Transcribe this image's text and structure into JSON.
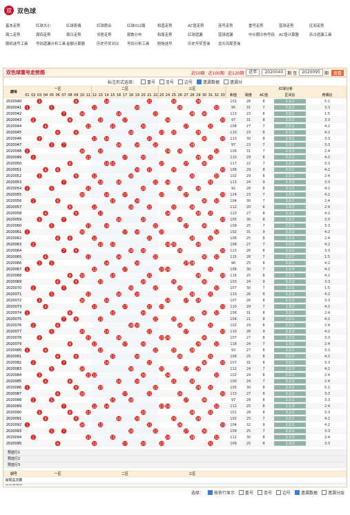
{
  "header": {
    "logo": "双",
    "title": "双色球"
  },
  "nav": [
    "基本走势",
    "红球大小",
    "红球奇偶",
    "红球质合",
    "红球012路",
    "和值走势",
    "AC值走势",
    "连号走势",
    "重号走势",
    "蓝球走势",
    "区间走势",
    "周二走势",
    "周四走势",
    "周日走势",
    "邻居走势",
    "尾数分布",
    "和尾走势",
    "红球遗漏",
    "蓝球遗漏",
    "中长期冷热号码",
    "AC值计算器",
    "杀冷遗漏工具",
    "随机选号工具",
    "号码遗漏分析工具",
    "金额计算器",
    "历史开奖对比",
    "号码分析工具",
    "胆拖选号",
    "历史开奖查询",
    "龙头凤尾查询"
  ],
  "panel": {
    "title": "双色球重号走势图",
    "ranges": [
      "近50期",
      "近100期",
      "近120期"
    ],
    "select": "近年",
    "from": "2020040",
    "to": "2020095",
    "period": "期",
    "to_word": "至",
    "button": "查看",
    "mark_label": "标注形式选择：",
    "marks": [
      {
        "label": "重号",
        "checked": false
      },
      {
        "label": "连号",
        "checked": false
      },
      {
        "label": "边号",
        "checked": false
      },
      {
        "label": "遗漏数据",
        "checked": true
      },
      {
        "label": "遗漏分",
        "checked": false
      }
    ]
  },
  "table": {
    "head": {
      "issue": "期号",
      "zones": [
        "一区",
        "二区",
        "三区"
      ],
      "analysis": "红球分析",
      "numbers": [
        "01",
        "02",
        "03",
        "04",
        "05",
        "06",
        "07",
        "08",
        "09",
        "10",
        "11",
        "12",
        "13",
        "14",
        "15",
        "16",
        "17",
        "18",
        "19",
        "20",
        "21",
        "22",
        "23",
        "24",
        "25",
        "26",
        "27",
        "28",
        "29",
        "30",
        "31",
        "32",
        "33"
      ],
      "cols": [
        "和值",
        "跨度",
        "AC值",
        "区间比",
        "奇偶比"
      ]
    },
    "rows": [
      {
        "issue": "2020040",
        "reds": [
          3,
          9,
          14,
          21,
          25,
          29
        ],
        "sum": 101,
        "span": 26,
        "ac": 8,
        "zone": "2:2:2",
        "oe": "5:1"
      },
      {
        "issue": "2020041",
        "reds": [
          1,
          5,
          12,
          19,
          26,
          32
        ],
        "sum": 95,
        "span": 31,
        "ac": 7,
        "zone": "2:2:2",
        "oe": "3:3"
      },
      {
        "issue": "2020042",
        "reds": [
          7,
          10,
          16,
          22,
          28,
          30
        ],
        "sum": 113,
        "span": 23,
        "ac": 6,
        "zone": "2:2:2",
        "oe": "1:5"
      },
      {
        "issue": "2020043",
        "reds": [
          2,
          8,
          13,
          17,
          24,
          33
        ],
        "sum": 97,
        "span": 31,
        "ac": 8,
        "zone": "2:2:2",
        "oe": "3:3"
      },
      {
        "issue": "2020044",
        "reds": [
          4,
          11,
          15,
          20,
          27,
          31
        ],
        "sum": 108,
        "span": 27,
        "ac": 7,
        "zone": "2:2:2",
        "oe": "4:2"
      },
      {
        "issue": "2020045",
        "reds": [
          6,
          9,
          18,
          23,
          25,
          29
        ],
        "sum": 110,
        "span": 23,
        "ac": 6,
        "zone": "2:1:3",
        "oe": "4:2"
      },
      {
        "issue": "2020046",
        "reds": [
          3,
          12,
          14,
          21,
          30,
          33
        ],
        "sum": 113,
        "span": 30,
        "ac": 8,
        "zone": "1:3:2",
        "oe": "3:3"
      },
      {
        "issue": "2020047",
        "reds": [
          5,
          7,
          16,
          19,
          22,
          28
        ],
        "sum": 97,
        "span": 23,
        "ac": 7,
        "zone": "2:3:1",
        "oe": "3:3"
      },
      {
        "issue": "2020048",
        "reds": [
          1,
          10,
          13,
          24,
          26,
          32
        ],
        "sum": 106,
        "span": 31,
        "ac": 7,
        "zone": "2:1:3",
        "oe": "2:4"
      },
      {
        "issue": "2020049",
        "reds": [
          2,
          11,
          17,
          20,
          29,
          31
        ],
        "sum": 110,
        "span": 29,
        "ac": 8,
        "zone": "2:2:2",
        "oe": "4:2"
      },
      {
        "issue": "2020050",
        "reds": [
          8,
          14,
          15,
          23,
          27,
          30
        ],
        "sum": 117,
        "span": 22,
        "ac": 7,
        "zone": "1:2:3",
        "oe": "3:3"
      },
      {
        "issue": "2020051",
        "reds": [
          4,
          6,
          19,
          21,
          25,
          33
        ],
        "sum": 108,
        "span": 29,
        "ac": 8,
        "zone": "2:2:2",
        "oe": "4:2"
      },
      {
        "issue": "2020052",
        "reds": [
          3,
          9,
          12,
          18,
          28,
          32
        ],
        "sum": 102,
        "span": 29,
        "ac": 8,
        "zone": "2:2:2",
        "oe": "2:4"
      },
      {
        "issue": "2020053",
        "reds": [
          7,
          13,
          16,
          22,
          24,
          31
        ],
        "sum": 113,
        "span": 24,
        "ac": 9,
        "zone": "1:3:2",
        "oe": "3:3"
      },
      {
        "issue": "2020054",
        "reds": [
          1,
          5,
          11,
          20,
          26,
          29
        ],
        "sum": 92,
        "span": 28,
        "ac": 8,
        "zone": "3:1:2",
        "oe": "4:2"
      },
      {
        "issue": "2020055",
        "reds": [
          10,
          14,
          17,
          23,
          27,
          33
        ],
        "sum": 124,
        "span": 23,
        "ac": 7,
        "zone": "1:2:3",
        "oe": "4:2"
      },
      {
        "issue": "2020056",
        "reds": [
          2,
          6,
          15,
          19,
          30,
          32
        ],
        "sum": 104,
        "span": 30,
        "ac": 7,
        "zone": "2:2:2",
        "oe": "2:4"
      },
      {
        "issue": "2020057",
        "reds": [
          8,
          12,
          18,
          21,
          25,
          28
        ],
        "sum": 112,
        "span": 20,
        "ac": 6,
        "zone": "1:3:2",
        "oe": "2:4"
      },
      {
        "issue": "2020058",
        "reds": [
          4,
          9,
          13,
          24,
          29,
          31
        ],
        "sum": 110,
        "span": 27,
        "ac": 8,
        "zone": "2:1:3",
        "oe": "4:2"
      },
      {
        "issue": "2020059",
        "reds": [
          3,
          7,
          16,
          20,
          26,
          33
        ],
        "sum": 105,
        "span": 30,
        "ac": 8,
        "zone": "2:2:2",
        "oe": "3:3"
      },
      {
        "issue": "2020060",
        "reds": [
          5,
          11,
          14,
          22,
          27,
          30
        ],
        "sum": 109,
        "span": 25,
        "ac": 7,
        "zone": "2:2:2",
        "oe": "3:3"
      },
      {
        "issue": "2020061",
        "reds": [
          1,
          10,
          17,
          19,
          23,
          32
        ],
        "sum": 102,
        "span": 31,
        "ac": 9,
        "zone": "2:2:2",
        "oe": "4:2"
      },
      {
        "issue": "2020062",
        "reds": [
          6,
          8,
          12,
          21,
          28,
          31
        ],
        "sum": 106,
        "span": 25,
        "ac": 8,
        "zone": "2:2:2",
        "oe": "2:4"
      },
      {
        "issue": "2020063",
        "reds": [
          2,
          13,
          15,
          24,
          25,
          29
        ],
        "sum": 108,
        "span": 27,
        "ac": 7,
        "zone": "1:2:3",
        "oe": "4:2"
      },
      {
        "issue": "2020064",
        "reds": [
          7,
          9,
          18,
          20,
          26,
          33
        ],
        "sum": 113,
        "span": 26,
        "ac": 8,
        "zone": "2:2:2",
        "oe": "3:3"
      },
      {
        "issue": "2020065",
        "reds": [
          4,
          11,
          16,
          22,
          30,
          32
        ],
        "sum": 115,
        "span": 28,
        "ac": 7,
        "zone": "2:2:2",
        "oe": "1:5"
      },
      {
        "issue": "2020066",
        "reds": [
          3,
          5,
          14,
          19,
          27,
          28
        ],
        "sum": 96,
        "span": 25,
        "ac": 8,
        "zone": "2:2:2",
        "oe": "4:2"
      },
      {
        "issue": "2020067",
        "reds": [
          1,
          12,
          17,
          23,
          24,
          31
        ],
        "sum": 108,
        "span": 30,
        "ac": 7,
        "zone": "1:2:3",
        "oe": "4:2"
      },
      {
        "issue": "2020068",
        "reds": [
          8,
          10,
          15,
          21,
          29,
          33
        ],
        "sum": 116,
        "span": 25,
        "ac": 8,
        "zone": "2:2:2",
        "oe": "4:2"
      },
      {
        "issue": "2020069",
        "reds": [
          6,
          9,
          13,
          20,
          25,
          30
        ],
        "sum": 103,
        "span": 24,
        "ac": 9,
        "zone": "2:2:2",
        "oe": "3:3"
      },
      {
        "issue": "2020070",
        "reds": [
          2,
          7,
          18,
          22,
          26,
          32
        ],
        "sum": 107,
        "span": 30,
        "ac": 7,
        "zone": "2:2:2",
        "oe": "1:5"
      },
      {
        "issue": "2020071",
        "reds": [
          5,
          11,
          16,
          19,
          28,
          31
        ],
        "sum": 110,
        "span": 26,
        "ac": 8,
        "zone": "2:2:2",
        "oe": "4:2"
      },
      {
        "issue": "2020072",
        "reds": [
          3,
          10,
          14,
          24,
          27,
          29
        ],
        "sum": 107,
        "span": 26,
        "ac": 8,
        "zone": "2:1:3",
        "oe": "3:3"
      },
      {
        "issue": "2020073",
        "reds": [
          4,
          12,
          17,
          21,
          23,
          33
        ],
        "sum": 110,
        "span": 29,
        "ac": 7,
        "zone": "1:3:2",
        "oe": "4:2"
      },
      {
        "issue": "2020074",
        "reds": [
          1,
          8,
          15,
          20,
          30,
          32
        ],
        "sum": 106,
        "span": 31,
        "ac": 8,
        "zone": "2:2:2",
        "oe": "2:4"
      },
      {
        "issue": "2020075",
        "reds": [
          7,
          9,
          13,
          22,
          25,
          28
        ],
        "sum": 104,
        "span": 21,
        "ac": 8,
        "zone": "2:2:2",
        "oe": "4:2"
      },
      {
        "issue": "2020076",
        "reds": [
          2,
          6,
          18,
          19,
          26,
          31
        ],
        "sum": 102,
        "span": 29,
        "ac": 8,
        "zone": "2:2:2",
        "oe": "2:4"
      },
      {
        "issue": "2020077",
        "reds": [
          5,
          10,
          14,
          21,
          27,
          33
        ],
        "sum": 110,
        "span": 28,
        "ac": 9,
        "zone": "2:2:2",
        "oe": "4:2"
      },
      {
        "issue": "2020078",
        "reds": [
          3,
          11,
          16,
          23,
          24,
          30
        ],
        "sum": 107,
        "span": 27,
        "ac": 8,
        "zone": "2:1:3",
        "oe": "3:3"
      },
      {
        "issue": "2020079",
        "reds": [
          8,
          12,
          17,
          20,
          29,
          32
        ],
        "sum": 118,
        "span": 24,
        "ac": 7,
        "zone": "1:3:2",
        "oe": "2:4"
      },
      {
        "issue": "2020080",
        "reds": [
          1,
          4,
          13,
          22,
          25,
          28
        ],
        "sum": 93,
        "span": 27,
        "ac": 8,
        "zone": "2:2:2",
        "oe": "3:3"
      },
      {
        "issue": "2020081",
        "reds": [
          6,
          9,
          15,
          19,
          26,
          31
        ],
        "sum": 106,
        "span": 25,
        "ac": 8,
        "zone": "2:2:2",
        "oe": "4:2"
      },
      {
        "issue": "2020082",
        "reds": [
          2,
          7,
          14,
          21,
          30,
          33
        ],
        "sum": 107,
        "span": 31,
        "ac": 8,
        "zone": "2:2:2",
        "oe": "3:3"
      },
      {
        "issue": "2020083",
        "reds": [
          5,
          10,
          18,
          23,
          27,
          29
        ],
        "sum": 112,
        "span": 24,
        "ac": 7,
        "zone": "2:1:3",
        "oe": "4:2"
      },
      {
        "issue": "2020084",
        "reds": [
          3,
          11,
          12,
          20,
          24,
          32
        ],
        "sum": 102,
        "span": 29,
        "ac": 8,
        "zone": "2:2:2",
        "oe": "2:4"
      },
      {
        "issue": "2020085",
        "reds": [
          4,
          8,
          16,
          19,
          25,
          28
        ],
        "sum": 100,
        "span": 24,
        "ac": 7,
        "zone": "2:2:2",
        "oe": "2:4"
      },
      {
        "issue": "2020086",
        "reds": [
          1,
          9,
          13,
          22,
          29,
          31
        ],
        "sum": 105,
        "span": 30,
        "ac": 8,
        "zone": "2:2:2",
        "oe": "5:1"
      },
      {
        "issue": "2020087",
        "reds": [
          6,
          10,
          17,
          21,
          26,
          33
        ],
        "sum": 113,
        "span": 27,
        "ac": 8,
        "zone": "2:2:2",
        "oe": "3:3"
      },
      {
        "issue": "2020088",
        "reds": [
          2,
          5,
          15,
          18,
          27,
          30
        ],
        "sum": 97,
        "span": 28,
        "ac": 8,
        "zone": "2:2:2",
        "oe": "3:3"
      },
      {
        "issue": "2020089",
        "reds": [
          7,
          12,
          14,
          23,
          24,
          32
        ],
        "sum": 112,
        "span": 25,
        "ac": 8,
        "zone": "1:2:3",
        "oe": "2:4"
      },
      {
        "issue": "2020090",
        "reds": [
          3,
          8,
          11,
          20,
          28,
          31
        ],
        "sum": 101,
        "span": 28,
        "ac": 8,
        "zone": "3:1:2",
        "oe": "3:3"
      },
      {
        "issue": "2020091",
        "reds": [
          4,
          9,
          16,
          19,
          25,
          29
        ],
        "sum": 102,
        "span": 25,
        "ac": 7,
        "zone": "2:2:2",
        "oe": "4:2"
      },
      {
        "issue": "2020092",
        "reds": [
          1,
          10,
          13,
          21,
          26,
          33
        ],
        "sum": 104,
        "span": 32,
        "ac": 9,
        "zone": "2:2:2",
        "oe": "4:2"
      },
      {
        "issue": "2020093",
        "reds": [
          5,
          7,
          18,
          22,
          27,
          30
        ],
        "sum": 109,
        "span": 25,
        "ac": 7,
        "zone": "2:2:2",
        "oe": "3:3"
      },
      {
        "issue": "2020094",
        "reds": [
          2,
          11,
          15,
          24,
          28,
          32
        ],
        "sum": 112,
        "span": 30,
        "ac": 8,
        "zone": "2:1:3",
        "oe": "2:4"
      },
      {
        "issue": "2020095",
        "reds": [
          6,
          12,
          17,
          20,
          23,
          31
        ],
        "sum": 109,
        "span": 25,
        "ac": 8,
        "zone": "1:3:2",
        "oe": "3:3"
      }
    ],
    "preselect": [
      "预选行1",
      "预选行2",
      "预选行3"
    ],
    "stats": [
      "出现总次数",
      "平均遗漏值",
      "最大遗漏值",
      "最大连出值"
    ]
  },
  "footer": {
    "label": "选择：",
    "options": [
      {
        "label": "按奇行显示",
        "checked": true
      },
      {
        "label": "重号",
        "checked": false
      },
      {
        "label": "连号",
        "checked": false
      },
      {
        "label": "边号",
        "checked": false
      },
      {
        "label": "遗漏数据",
        "checked": true
      },
      {
        "label": "遗漏分层",
        "checked": false
      }
    ]
  }
}
